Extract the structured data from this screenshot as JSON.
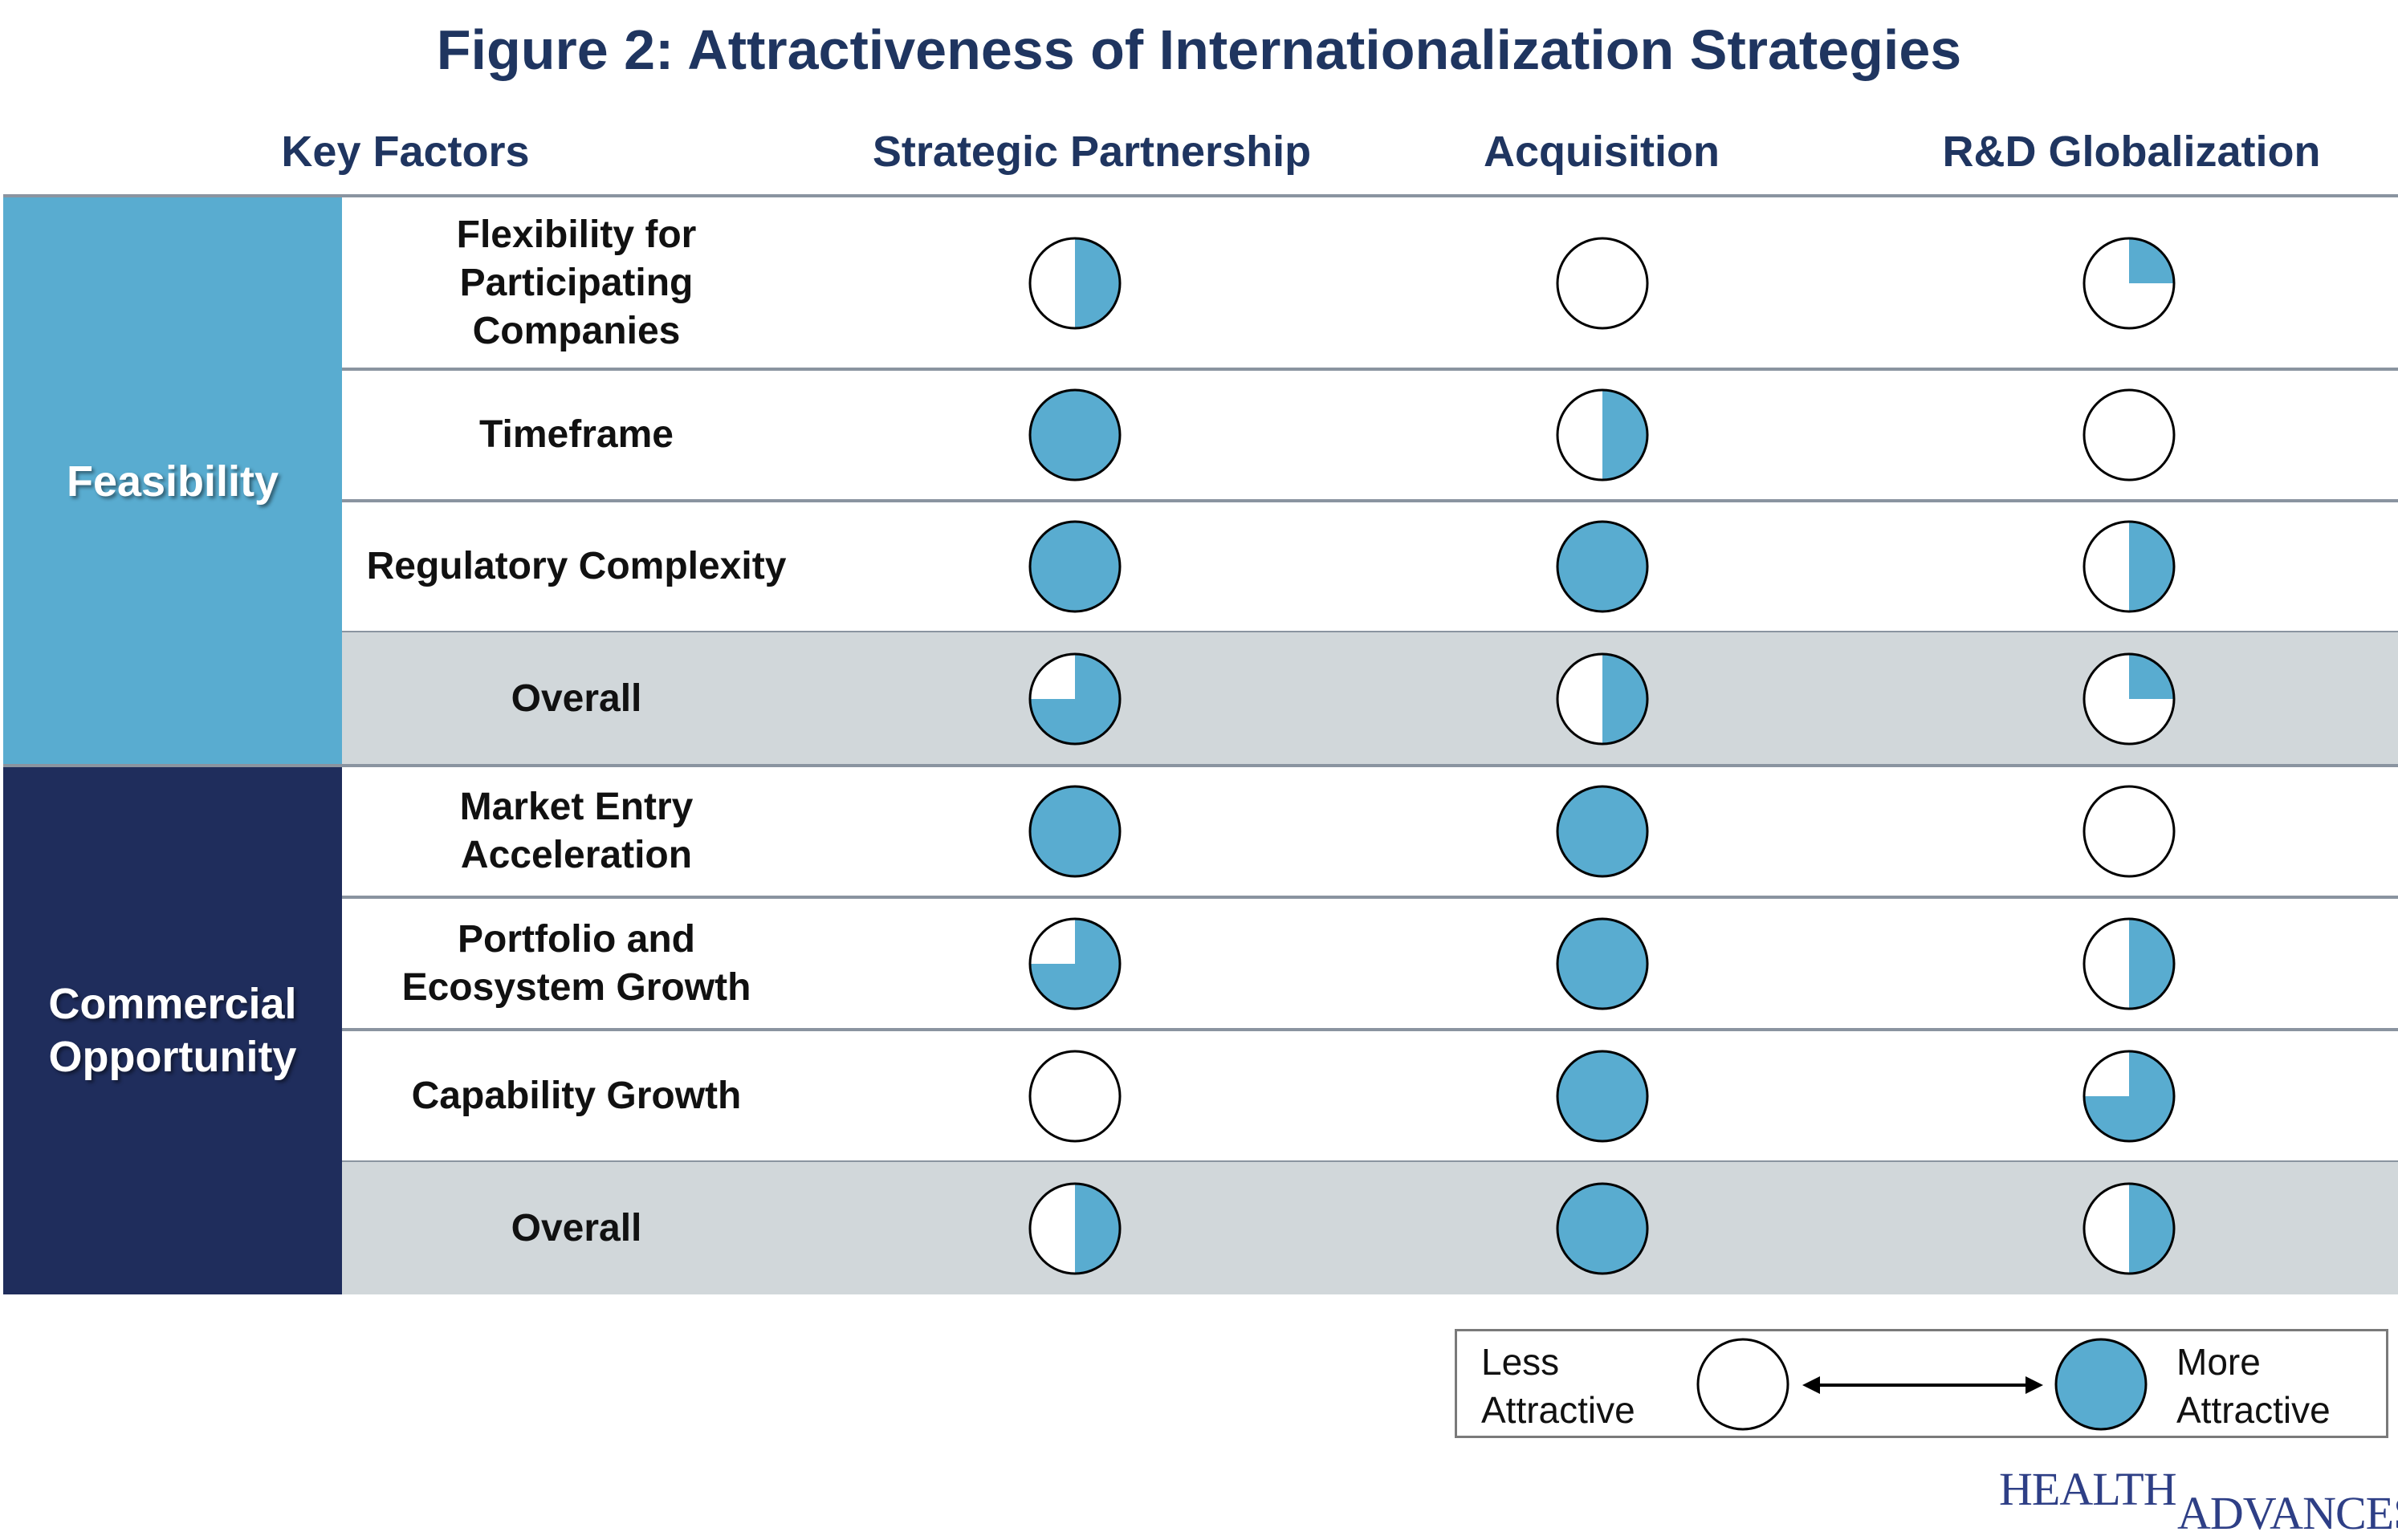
{
  "chart_data": {
    "type": "table",
    "title": "Figure 2: Attractiveness of Internationalization Strategies",
    "header": {
      "key_factors": "Key Factors",
      "columns": [
        "Strategic Partnership",
        "Acquisition",
        "R&D Globalization"
      ]
    },
    "groups": [
      {
        "name": "Feasibility",
        "color": "#59acd0",
        "rows": [
          {
            "label": "Flexibility for\nParticipating\nCompanies",
            "values": [
              0.5,
              0,
              0.25
            ],
            "overall": false
          },
          {
            "label": "Timeframe",
            "values": [
              1,
              0.5,
              0
            ],
            "overall": false
          },
          {
            "label": "Regulatory Complexity",
            "values": [
              1,
              1,
              0.5
            ],
            "overall": false
          },
          {
            "label": "Overall",
            "values": [
              0.75,
              0.5,
              0.25
            ],
            "overall": true
          }
        ]
      },
      {
        "name": "Commercial\nOpportunity",
        "color": "#1f2d5c",
        "rows": [
          {
            "label": "Market Entry\nAcceleration",
            "values": [
              1,
              1,
              0
            ],
            "overall": false
          },
          {
            "label": "Portfolio and\nEcosystem Growth",
            "values": [
              0.75,
              1,
              0.5
            ],
            "overall": false
          },
          {
            "label": "Capability Growth",
            "values": [
              0,
              1,
              0.75
            ],
            "overall": false
          },
          {
            "label": "Overall",
            "values": [
              0.5,
              1,
              0.5
            ],
            "overall": true
          }
        ]
      }
    ],
    "legend": {
      "less": "Less\nAttractive",
      "more": "More\nAttractive"
    },
    "fill_color": "#59acd0",
    "overall_row_color": "#d1d7da"
  },
  "logo": {
    "top": "HEALTH",
    "bottom": "ADVANCES"
  }
}
